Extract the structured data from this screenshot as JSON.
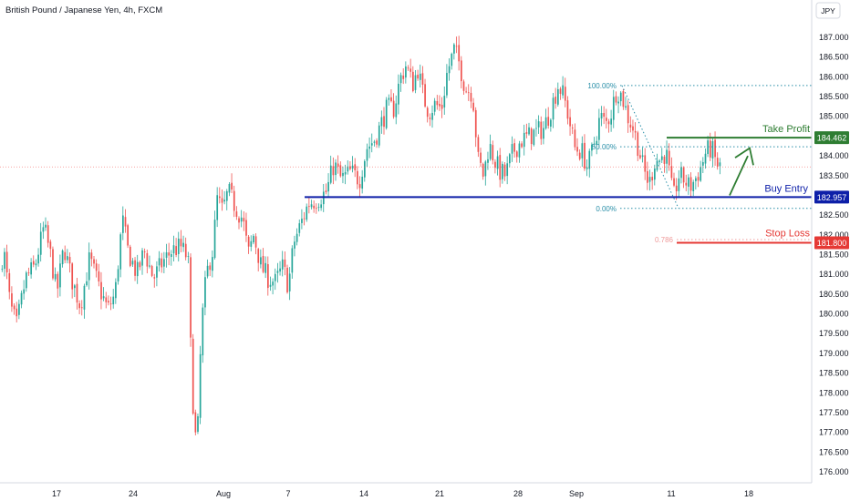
{
  "header": {
    "title": "British Pound / Japanese Yen, 4h, FXCM",
    "currency_button": "JPY"
  },
  "colors": {
    "up": "#26a69a",
    "down": "#ef5350",
    "entry": "#0d1fa8",
    "take_profit": "#2e7d32",
    "stop_loss": "#e53935",
    "fib": "#2a8fa8",
    "fib_786": "#ef9a9a"
  },
  "chart_data": {
    "type": "candlestick",
    "symbol": "GBPJPY",
    "timeframe": "4h",
    "ylim": [
      175.8,
      187.5
    ],
    "y_ticks": [
      "176.000",
      "176.500",
      "177.000",
      "177.500",
      "178.000",
      "178.500",
      "179.000",
      "179.500",
      "180.000",
      "180.500",
      "181.000",
      "181.500",
      "182.000",
      "182.500",
      "183.000",
      "183.500",
      "184.000",
      "184.500",
      "185.000",
      "185.500",
      "186.000",
      "186.500",
      "187.000"
    ],
    "x_tick_labels": [
      "17",
      "24",
      "Aug",
      "7",
      "14",
      "21",
      "28",
      "Sep",
      "11",
      "18"
    ],
    "current_price": 183.72,
    "price_path": [
      [
        0,
        181.0
      ],
      [
        6,
        181.6
      ],
      [
        13,
        180.2
      ],
      [
        20,
        179.7
      ],
      [
        30,
        180.9
      ],
      [
        40,
        181.2
      ],
      [
        50,
        182.2
      ],
      [
        58,
        181.4
      ],
      [
        64,
        180.5
      ],
      [
        72,
        181.7
      ],
      [
        80,
        180.9
      ],
      [
        90,
        180.2
      ],
      [
        100,
        181.4
      ],
      [
        110,
        180.7
      ],
      [
        120,
        180.1
      ],
      [
        128,
        180.5
      ],
      [
        136,
        182.4
      ],
      [
        142,
        181.6
      ],
      [
        152,
        181.0
      ],
      [
        160,
        181.6
      ],
      [
        170,
        180.9
      ],
      [
        180,
        181.3
      ],
      [
        190,
        181.6
      ],
      [
        200,
        181.7
      ],
      [
        208,
        181.4
      ],
      [
        212,
        178.3
      ],
      [
        215,
        177.2
      ],
      [
        218,
        176.4
      ],
      [
        220,
        178.3
      ],
      [
        225,
        180.4
      ],
      [
        230,
        181.2
      ],
      [
        235,
        181.6
      ],
      [
        240,
        182.9
      ],
      [
        246,
        182.6
      ],
      [
        252,
        183.1
      ],
      [
        260,
        182.7
      ],
      [
        268,
        182.4
      ],
      [
        274,
        181.5
      ],
      [
        280,
        182.0
      ],
      [
        288,
        181.2
      ],
      [
        296,
        180.9
      ],
      [
        304,
        180.8
      ],
      [
        312,
        181.2
      ],
      [
        318,
        180.7
      ],
      [
        324,
        181.8
      ],
      [
        332,
        182.3
      ],
      [
        340,
        182.8
      ],
      [
        350,
        182.9
      ],
      [
        360,
        183.1
      ],
      [
        368,
        183.8
      ],
      [
        376,
        183.4
      ],
      [
        386,
        183.6
      ],
      [
        396,
        183.4
      ],
      [
        404,
        184.2
      ],
      [
        412,
        184.4
      ],
      [
        418,
        184.7
      ],
      [
        426,
        185.2
      ],
      [
        434,
        185.2
      ],
      [
        440,
        185.9
      ],
      [
        447,
        186.3
      ],
      [
        454,
        185.8
      ],
      [
        460,
        186.2
      ],
      [
        466,
        185.5
      ],
      [
        472,
        185.1
      ],
      [
        478,
        185.3
      ],
      [
        486,
        185.2
      ],
      [
        492,
        186.1
      ],
      [
        500,
        186.7
      ],
      [
        506,
        186.3
      ],
      [
        512,
        185.7
      ],
      [
        520,
        185.6
      ],
      [
        526,
        183.9
      ],
      [
        532,
        183.5
      ],
      [
        538,
        184.3
      ],
      [
        544,
        183.9
      ],
      [
        550,
        183.6
      ],
      [
        556,
        183.5
      ],
      [
        564,
        184.1
      ],
      [
        574,
        184.4
      ],
      [
        582,
        184.5
      ],
      [
        590,
        184.6
      ],
      [
        598,
        184.7
      ],
      [
        606,
        185.2
      ],
      [
        614,
        185.8
      ],
      [
        620,
        185.5
      ],
      [
        626,
        184.9
      ],
      [
        632,
        184.2
      ],
      [
        640,
        184.1
      ],
      [
        646,
        183.7
      ],
      [
        652,
        184.2
      ],
      [
        660,
        185.0
      ],
      [
        666,
        184.8
      ],
      [
        672,
        185.1
      ],
      [
        678,
        185.7
      ],
      [
        684,
        185.5
      ],
      [
        690,
        185.0
      ],
      [
        696,
        184.7
      ],
      [
        702,
        184.2
      ],
      [
        708,
        183.6
      ],
      [
        714,
        183.3
      ],
      [
        720,
        183.9
      ],
      [
        726,
        183.9
      ],
      [
        732,
        184.1
      ],
      [
        736,
        183.5
      ],
      [
        740,
        182.9
      ],
      [
        746,
        183.5
      ],
      [
        752,
        183.4
      ],
      [
        758,
        183.2
      ],
      [
        764,
        183.4
      ],
      [
        770,
        183.7
      ],
      [
        776,
        184.1
      ],
      [
        782,
        184.2
      ],
      [
        786,
        183.9
      ],
      [
        790,
        183.7
      ]
    ],
    "annotations": [
      {
        "label": "Take Profit",
        "price_label": "184.462",
        "price": 184.46
      },
      {
        "label": "Buy Entry",
        "price_label": "182.957",
        "price": 182.957
      },
      {
        "label": "Stop Loss",
        "price_label": "181.800",
        "price": 181.8
      }
    ],
    "fibonacci": [
      {
        "label": "100.00%",
        "price": 185.78
      },
      {
        "label": "50.00%",
        "price": 184.23
      },
      {
        "label": "0.00%",
        "price": 182.67
      },
      {
        "label": "0.786",
        "price": 181.88
      }
    ]
  }
}
